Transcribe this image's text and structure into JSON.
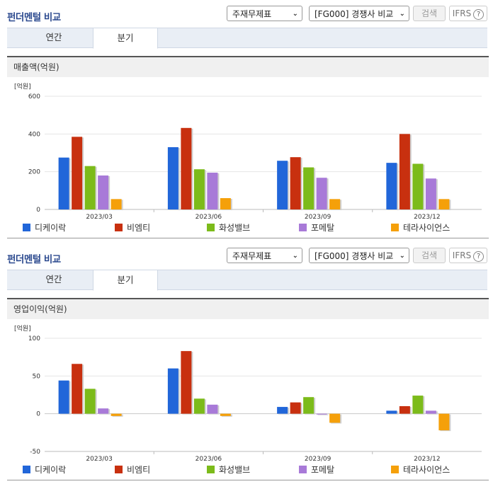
{
  "panels": [
    {
      "title": "펀더멘털 비교",
      "select1": "주재무제표",
      "select2": "[FG000] 경쟁사 비교",
      "search_label": "검색",
      "ifrs_label": "IFRS",
      "help_symbol": "?",
      "tabs": [
        "연간",
        "분기"
      ],
      "active_tab": 1,
      "chart_title": "매출액(억원)"
    },
    {
      "title": "펀더멘털 비교",
      "select1": "주재무제표",
      "select2": "[FG000] 경쟁사 비교",
      "search_label": "검색",
      "ifrs_label": "IFRS",
      "help_symbol": "?",
      "tabs": [
        "연간",
        "분기"
      ],
      "active_tab": 1,
      "chart_title": "영업이익(억원)"
    }
  ],
  "select_arrow": "⌄",
  "colors": [
    "#2166d9",
    "#c8300f",
    "#7cbb1a",
    "#a87ad8",
    "#f5a00a"
  ],
  "chart_data": [
    {
      "type": "bar",
      "unit_label": "[억원]",
      "categories": [
        "2023/03",
        "2023/06",
        "2023/09",
        "2023/12"
      ],
      "ylim": [
        0,
        600
      ],
      "yticks": [
        0,
        200,
        400,
        600
      ],
      "series": [
        {
          "name": "디케이락",
          "values": [
            275,
            330,
            258,
            247
          ]
        },
        {
          "name": "비엠티",
          "values": [
            385,
            432,
            277,
            400
          ]
        },
        {
          "name": "화성밸브",
          "values": [
            230,
            213,
            223,
            242
          ]
        },
        {
          "name": "포메탈",
          "values": [
            180,
            195,
            168,
            164
          ]
        },
        {
          "name": "테라사이언스",
          "values": [
            55,
            60,
            55,
            55
          ]
        }
      ]
    },
    {
      "type": "bar",
      "unit_label": "[억원]",
      "categories": [
        "2023/03",
        "2023/06",
        "2023/09",
        "2023/12"
      ],
      "ylim": [
        -50,
        100
      ],
      "yticks": [
        -50,
        0,
        50,
        100
      ],
      "series": [
        {
          "name": "디케이락",
          "values": [
            44,
            60,
            9,
            4
          ]
        },
        {
          "name": "비엠티",
          "values": [
            66,
            83,
            15,
            10
          ]
        },
        {
          "name": "화성밸브",
          "values": [
            33,
            20,
            22,
            24
          ]
        },
        {
          "name": "포메탈",
          "values": [
            7,
            12,
            -1,
            4
          ]
        },
        {
          "name": "테라사이언스",
          "values": [
            -3,
            -3,
            -12,
            -22
          ]
        }
      ]
    }
  ]
}
